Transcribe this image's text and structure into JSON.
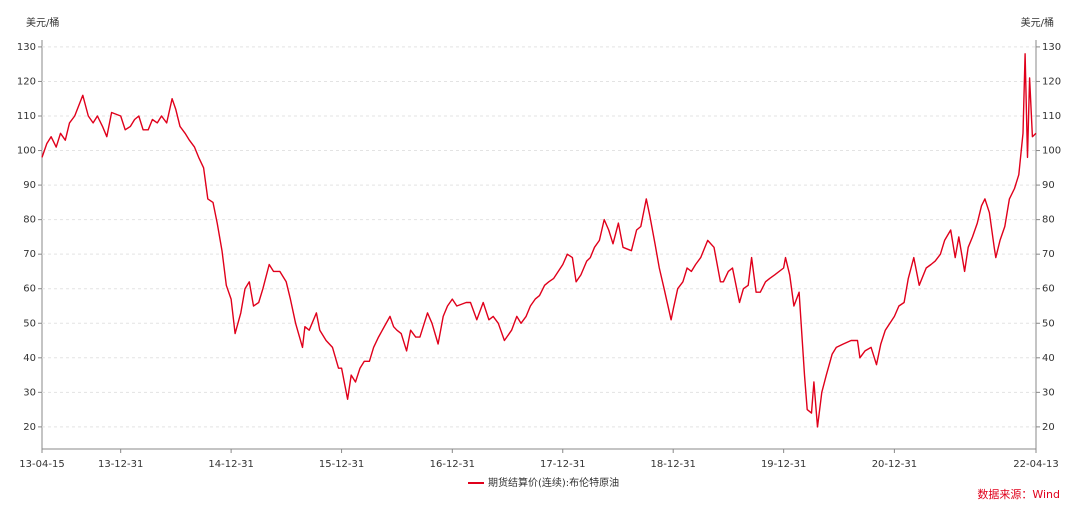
{
  "chart_data": {
    "type": "line",
    "y_label": "美元/桶",
    "y2_label": "美元/桶",
    "source": "数据来源：Wind",
    "x": [
      "13-04-15",
      "13-05-01",
      "13-05-15",
      "13-06-01",
      "13-06-15",
      "13-07-01",
      "13-07-15",
      "13-08-01",
      "13-08-28",
      "13-09-15",
      "13-10-01",
      "13-10-15",
      "13-11-01",
      "13-11-15",
      "13-12-01",
      "13-12-31",
      "14-01-15",
      "14-02-01",
      "14-02-15",
      "14-03-01",
      "14-03-15",
      "14-04-01",
      "14-04-15",
      "14-05-01",
      "14-05-15",
      "14-06-01",
      "14-06-19",
      "14-07-01",
      "14-07-15",
      "14-08-01",
      "14-08-15",
      "14-09-01",
      "14-09-15",
      "14-10-01",
      "14-10-15",
      "14-11-01",
      "14-11-15",
      "14-12-01",
      "14-12-15",
      "14-12-31",
      "15-01-13",
      "15-02-01",
      "15-02-15",
      "15-03-01",
      "15-03-15",
      "15-04-01",
      "15-04-15",
      "15-05-06",
      "15-05-20",
      "15-06-10",
      "15-07-01",
      "15-07-15",
      "15-08-01",
      "15-08-24",
      "15-09-01",
      "15-09-15",
      "15-10-09",
      "15-10-20",
      "15-11-10",
      "15-12-01",
      "15-12-21",
      "15-12-31",
      "16-01-20",
      "16-02-01",
      "16-02-15",
      "16-03-01",
      "16-03-15",
      "16-04-01",
      "16-04-15",
      "16-05-01",
      "16-06-08",
      "16-06-20",
      "16-07-01",
      "16-07-15",
      "16-08-02",
      "16-08-15",
      "16-09-01",
      "16-09-15",
      "16-10-10",
      "16-10-25",
      "16-11-14",
      "16-12-01",
      "16-12-15",
      "16-12-31",
      "17-01-15",
      "17-02-15",
      "17-03-01",
      "17-03-22",
      "17-04-12",
      "17-05-01",
      "17-05-15",
      "17-06-01",
      "17-06-21",
      "17-07-15",
      "17-08-01",
      "17-08-15",
      "17-09-01",
      "17-09-15",
      "17-10-01",
      "17-10-15",
      "17-11-01",
      "17-11-15",
      "17-12-01",
      "17-12-31",
      "18-01-15",
      "18-02-01",
      "18-02-13",
      "18-03-01",
      "18-03-20",
      "18-04-01",
      "18-04-15",
      "18-05-01",
      "18-05-17",
      "18-06-01",
      "18-06-15",
      "18-07-03",
      "18-07-18",
      "18-08-15",
      "18-09-01",
      "18-09-15",
      "18-10-03",
      "18-10-15",
      "18-11-01",
      "18-11-15",
      "18-12-01",
      "18-12-24",
      "18-12-31",
      "19-01-15",
      "19-02-01",
      "19-02-15",
      "19-03-01",
      "19-03-15",
      "19-04-01",
      "19-04-24",
      "19-05-15",
      "19-06-05",
      "19-06-15",
      "19-07-01",
      "19-07-15",
      "19-08-07",
      "19-08-20",
      "19-09-05",
      "19-09-16",
      "19-10-01",
      "19-10-15",
      "19-11-01",
      "19-11-15",
      "19-12-01",
      "19-12-31",
      "20-01-06",
      "20-01-20",
      "20-02-03",
      "20-02-20",
      "20-03-09",
      "20-03-18",
      "20-04-01",
      "20-04-09",
      "20-04-21",
      "20-05-05",
      "20-05-20",
      "20-06-08",
      "20-06-22",
      "20-07-15",
      "20-08-10",
      "20-08-31",
      "20-09-08",
      "20-09-25",
      "20-10-15",
      "20-11-02",
      "20-11-16",
      "20-12-01",
      "20-12-31",
      "21-01-15",
      "21-02-01",
      "21-02-15",
      "21-03-05",
      "21-03-23",
      "21-04-15",
      "21-05-01",
      "21-05-15",
      "21-06-01",
      "21-06-15",
      "21-07-05",
      "21-07-20",
      "21-08-01",
      "21-08-20",
      "21-09-01",
      "21-09-15",
      "21-10-01",
      "21-10-15",
      "21-10-26",
      "21-11-10",
      "21-11-26",
      "21-12-01",
      "21-12-15",
      "21-12-31",
      "22-01-15",
      "22-02-01",
      "22-02-15",
      "22-03-01",
      "22-03-08",
      "22-03-16",
      "22-03-23",
      "22-04-01",
      "22-04-13"
    ],
    "series": [
      {
        "name": "期货结算价(连续):布伦特原油",
        "color": "#e0001b",
        "values": [
          98,
          102,
          104,
          101,
          105,
          103,
          108,
          110,
          116,
          110,
          108,
          110,
          107,
          104,
          111,
          110,
          106,
          107,
          109,
          110,
          106,
          106,
          109,
          108,
          110,
          108,
          115,
          112,
          107,
          105,
          103,
          101,
          98,
          95,
          86,
          85,
          79,
          71,
          61,
          57,
          47,
          53,
          60,
          62,
          55,
          56,
          60,
          67,
          65,
          65,
          62,
          57,
          50,
          43,
          49,
          48,
          53,
          48,
          45,
          43,
          37,
          37,
          28,
          35,
          33,
          37,
          39,
          39,
          43,
          46,
          52,
          49,
          48,
          47,
          42,
          48,
          46,
          46,
          53,
          50,
          44,
          52,
          55,
          57,
          55,
          56,
          56,
          51,
          56,
          51,
          52,
          50,
          45,
          48,
          52,
          50,
          52,
          55,
          57,
          58,
          61,
          62,
          63,
          67,
          70,
          69,
          62,
          64,
          68,
          69,
          72,
          74,
          80,
          77,
          73,
          79,
          72,
          71,
          77,
          78,
          86,
          81,
          73,
          66,
          60,
          51,
          54,
          60,
          62,
          66,
          65,
          67,
          69,
          74,
          72,
          62,
          62,
          65,
          66,
          56,
          60,
          61,
          69,
          59,
          59,
          62,
          63,
          64,
          66,
          69,
          64,
          55,
          59,
          35,
          25,
          24,
          33,
          20,
          30,
          35,
          41,
          43,
          44,
          45,
          45,
          40,
          42,
          43,
          38,
          44,
          48,
          52,
          55,
          56,
          63,
          69,
          61,
          66,
          67,
          68,
          70,
          74,
          77,
          69,
          75,
          65,
          72,
          75,
          79,
          84,
          86,
          82,
          72,
          69,
          74,
          78,
          86,
          89,
          93,
          105,
          128,
          98,
          121,
          104,
          105
        ]
      }
    ],
    "xlim": [
      "13-04-15",
      "22-04-13"
    ],
    "xticks": [
      "13-04-15",
      "13-12-31",
      "14-12-31",
      "15-12-31",
      "16-12-31",
      "17-12-31",
      "18-12-31",
      "19-12-31",
      "20-12-31",
      "22-04-13"
    ],
    "ylim": [
      13.6,
      132
    ],
    "yticks": [
      20,
      30,
      40,
      50,
      60,
      70,
      80,
      90,
      100,
      110,
      120,
      130
    ],
    "y2lim": [
      13.6,
      132
    ],
    "y2ticks": [
      20,
      30,
      40,
      50,
      60,
      70,
      80,
      90,
      100,
      110,
      120,
      130
    ],
    "grid": true
  }
}
